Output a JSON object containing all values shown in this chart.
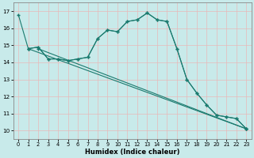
{
  "xlabel": "Humidex (Indice chaleur)",
  "xlim": [
    -0.5,
    23.5
  ],
  "ylim": [
    9.5,
    17.5
  ],
  "yticks": [
    10,
    11,
    12,
    13,
    14,
    15,
    16,
    17
  ],
  "xticks": [
    0,
    1,
    2,
    3,
    4,
    5,
    6,
    7,
    8,
    9,
    10,
    11,
    12,
    13,
    14,
    15,
    16,
    17,
    18,
    19,
    20,
    21,
    22,
    23
  ],
  "bg_color": "#c8eaea",
  "line_color": "#1a7a6e",
  "grid_color": "#e8c8c8",
  "line1_x": [
    0,
    1,
    2,
    3,
    4,
    5,
    6,
    7,
    8,
    9,
    10,
    11,
    12,
    13,
    14,
    15,
    16,
    17,
    18,
    19,
    20,
    21,
    22,
    23
  ],
  "line1_y": [
    16.8,
    14.8,
    14.9,
    14.2,
    14.2,
    14.1,
    14.2,
    14.3,
    15.4,
    15.9,
    15.8,
    16.4,
    16.5,
    16.9,
    16.5,
    16.4,
    14.8,
    13.0,
    12.2,
    11.5,
    10.9,
    10.8,
    10.7,
    10.1
  ],
  "line2_x": [
    1,
    2,
    3,
    4,
    5,
    6,
    7,
    8,
    9,
    10,
    11,
    12,
    13,
    14,
    15,
    16,
    17,
    18,
    19,
    20,
    21,
    22,
    23
  ],
  "line2_y": [
    14.8,
    14.9,
    14.2,
    14.2,
    14.1,
    14.2,
    14.3,
    15.4,
    15.9,
    15.8,
    16.4,
    16.5,
    16.9,
    16.5,
    16.4,
    14.8,
    13.0,
    12.2,
    11.5,
    10.9,
    10.8,
    10.7,
    10.1
  ],
  "line3_x": [
    1,
    23
  ],
  "line3_y": [
    14.8,
    10.1
  ],
  "line4_x": [
    2,
    23
  ],
  "line4_y": [
    14.8,
    10.1
  ]
}
